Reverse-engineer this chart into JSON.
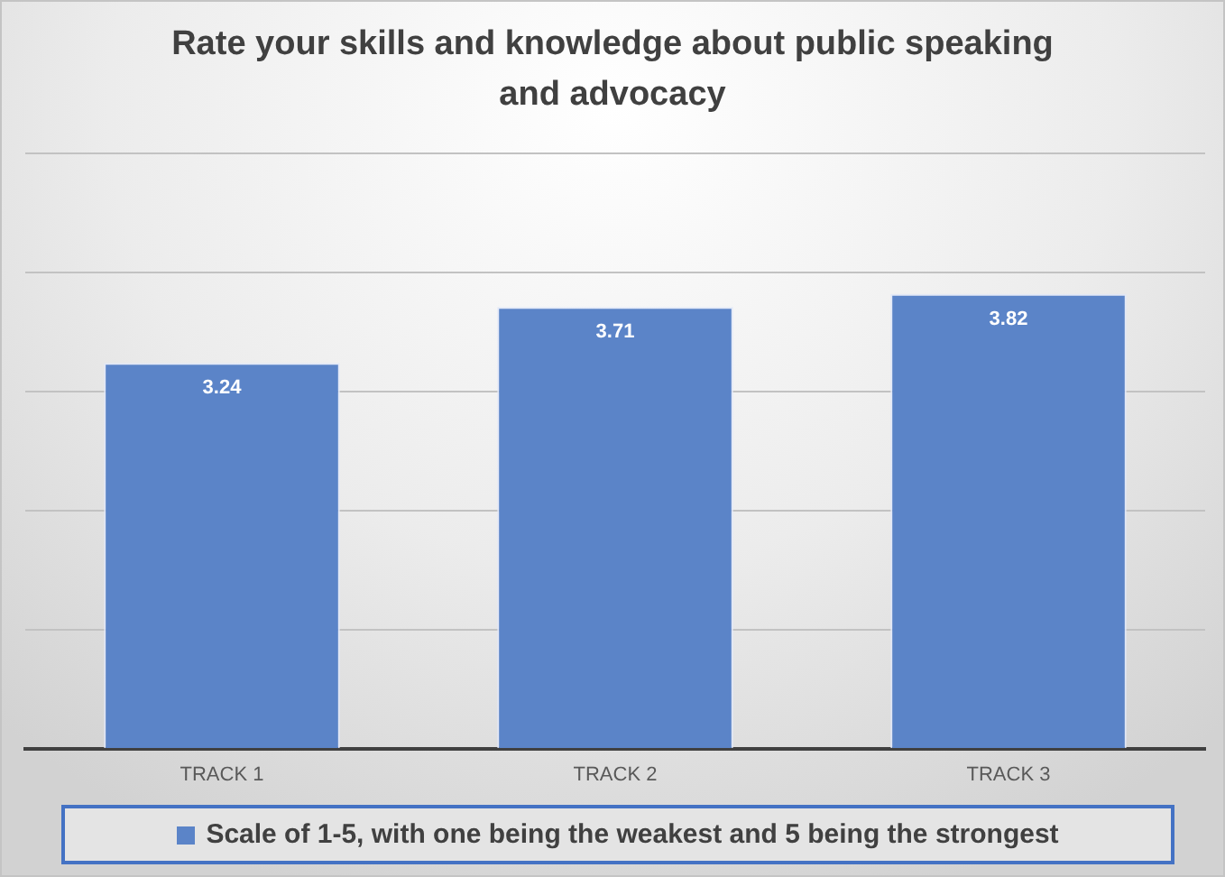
{
  "chart_data": {
    "type": "bar",
    "title": "Rate your skills and knowledge about public speaking and advocacy",
    "categories": [
      "TRACK 1",
      "TRACK 2",
      "TRACK 3"
    ],
    "series": [
      {
        "name": "Scale of 1-5, with one being the weakest and 5 being the strongest",
        "color": "#5b84c8",
        "values": [
          3.24,
          3.71,
          3.82
        ]
      }
    ],
    "ylim": [
      0,
      5
    ],
    "yticks": [
      0,
      1,
      2,
      3,
      4,
      5
    ],
    "grid": "y",
    "tick_labels": "x",
    "data_labels": true,
    "legend": "bottom"
  }
}
